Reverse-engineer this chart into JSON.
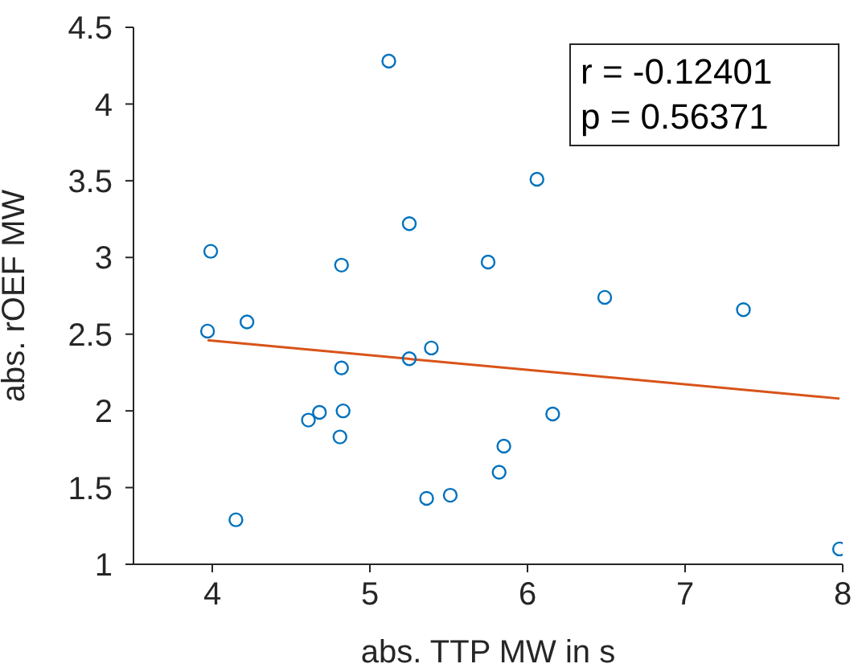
{
  "chart_data": {
    "type": "scatter",
    "xlabel": "abs. TTP MW in s",
    "ylabel": "abs. rOEF MW",
    "annotations": [
      "r = -0.12401",
      "p = 0.56371"
    ],
    "xlim": [
      3.5,
      8
    ],
    "xticks": [
      4,
      5,
      6,
      7,
      8
    ],
    "ylim": [
      1,
      4.5
    ],
    "yticks": [
      1,
      1.5,
      2,
      2.5,
      3,
      3.5,
      4,
      4.5
    ],
    "grid": false,
    "legend": false,
    "series": [
      {
        "color": "#0072bd",
        "marker": "circle",
        "x": [
          3.99,
          3.97,
          4.22,
          4.15,
          4.61,
          4.68,
          4.82,
          4.82,
          4.83,
          4.81,
          5.12,
          5.25,
          5.25,
          5.39,
          5.36,
          5.51,
          5.75,
          5.82,
          5.85,
          6.06,
          6.16,
          6.49,
          7.37,
          7.98
        ],
        "values": [
          3.04,
          2.52,
          2.58,
          1.29,
          1.94,
          1.99,
          2.95,
          2.28,
          2.0,
          1.83,
          4.28,
          3.22,
          2.34,
          2.41,
          1.43,
          1.45,
          2.97,
          1.6,
          1.77,
          3.51,
          1.98,
          2.74,
          2.66,
          1.1
        ]
      },
      {
        "type": "line",
        "color": "#d95319",
        "marker": "none",
        "x": [
          3.97,
          7.98
        ],
        "values": [
          2.46,
          2.08
        ]
      }
    ]
  }
}
